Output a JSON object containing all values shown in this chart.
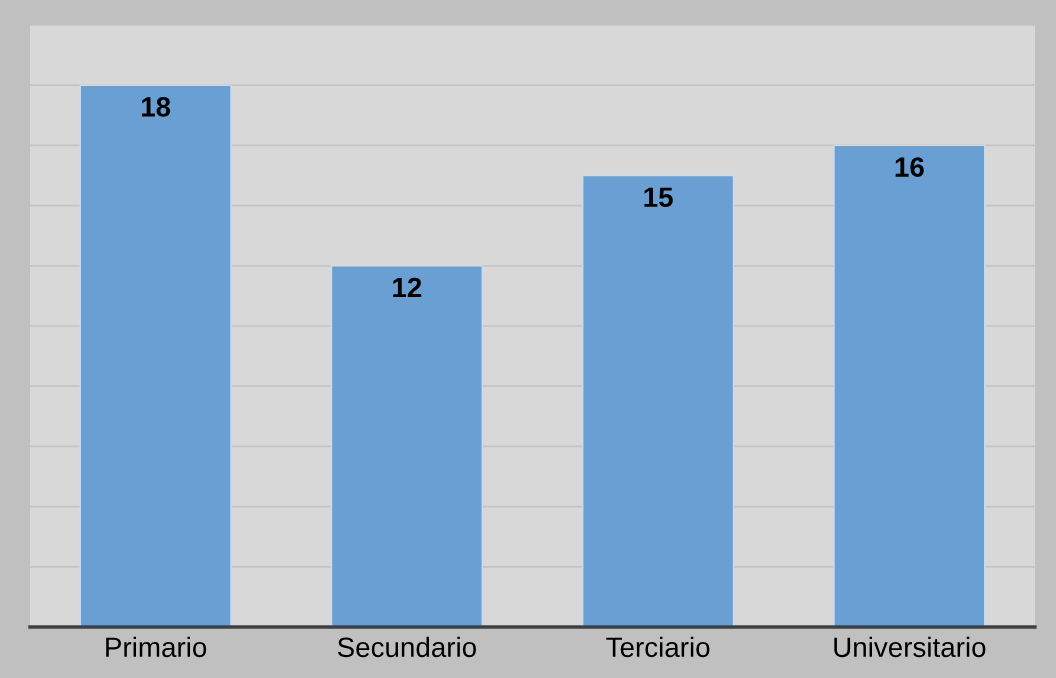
{
  "chart_data": {
    "type": "bar",
    "categories": [
      "Primario",
      "Secundario",
      "Terciario",
      "Universitario"
    ],
    "values": [
      18,
      12,
      15,
      16
    ],
    "color": "#6a9fd3",
    "ylim": [
      0,
      20
    ],
    "yticks": [
      {
        "value": 0,
        "label": null
      },
      {
        "value": 2,
        "label": null
      },
      {
        "value": 4,
        "label": null
      },
      {
        "value": 6,
        "label": null
      },
      {
        "value": 8,
        "label": null
      },
      {
        "value": 10,
        "label": null
      },
      {
        "value": 12,
        "label": null
      },
      {
        "value": 14,
        "label": null
      },
      {
        "value": 16,
        "label": null
      },
      {
        "value": 18,
        "label": null
      },
      {
        "value": 20,
        "label": null
      }
    ],
    "grid": "y",
    "tick_labels": "x",
    "data_labels": true
  }
}
